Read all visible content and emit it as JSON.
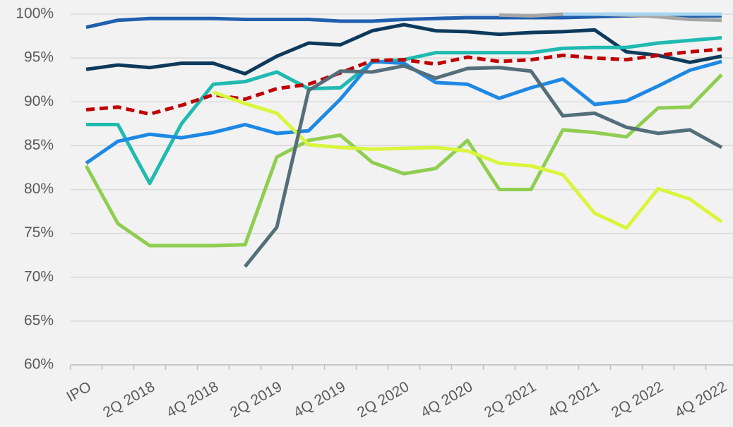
{
  "chart_data": {
    "type": "line",
    "categories": [
      "IPO",
      null,
      "2Q 2018",
      null,
      "4Q 2018",
      null,
      "2Q 2019",
      null,
      "4Q 2019",
      null,
      "2Q 2020",
      null,
      "4Q 2020",
      null,
      "2Q 2021",
      null,
      "4Q 2021",
      null,
      "2Q 2022",
      null,
      "4Q 2022"
    ],
    "ylim": [
      60,
      100
    ],
    "yticks": [
      {
        "value": 60,
        "label": "60%"
      },
      {
        "value": 65,
        "label": "65%"
      },
      {
        "value": 70,
        "label": "70%"
      },
      {
        "value": 75,
        "label": "75%"
      },
      {
        "value": 80,
        "label": "80%"
      },
      {
        "value": 85,
        "label": "85%"
      },
      {
        "value": 90,
        "label": "90%"
      },
      {
        "value": 95,
        "label": "95%"
      },
      {
        "value": 100,
        "label": "100%"
      }
    ],
    "grid": true,
    "series": [
      {
        "color": "#1f5fae",
        "dash": false,
        "values": [
          98.5,
          99.3,
          99.5,
          99.5,
          99.5,
          99.4,
          99.4,
          99.4,
          99.2,
          99.2,
          99.4,
          99.5,
          99.6,
          99.6,
          99.6,
          99.6,
          99.7,
          99.8,
          99.8,
          99.8,
          99.8
        ]
      },
      {
        "color": "#a6a6a6",
        "dash": false,
        "values": [
          null,
          null,
          null,
          null,
          null,
          null,
          null,
          null,
          null,
          null,
          null,
          null,
          null,
          99.9,
          99.8,
          100,
          100,
          99.9,
          99.7,
          99.4,
          99.3
        ]
      },
      {
        "color": "#a9d5f0",
        "dash": false,
        "values": [
          null,
          null,
          null,
          null,
          null,
          null,
          null,
          null,
          null,
          null,
          null,
          null,
          null,
          null,
          null,
          100,
          100,
          100,
          100,
          100,
          100
        ]
      },
      {
        "color": "#0d3a5c",
        "dash": false,
        "values": [
          93.7,
          94.2,
          93.9,
          94.4,
          94.4,
          93.2,
          95.2,
          96.7,
          96.5,
          98.1,
          98.8,
          98.1,
          98.0,
          97.7,
          97.9,
          98.0,
          98.2,
          95.7,
          95.3,
          94.5,
          95.2
        ]
      },
      {
        "color": "#1fbab0",
        "dash": false,
        "values": [
          87.4,
          87.4,
          80.7,
          87.5,
          92.0,
          92.3,
          93.4,
          91.5,
          91.6,
          94.5,
          94.8,
          95.6,
          95.6,
          95.6,
          95.6,
          96.1,
          96.2,
          96.2,
          96.7,
          97.0,
          97.3
        ]
      },
      {
        "color": "#1e88e5",
        "dash": false,
        "values": [
          83.0,
          85.5,
          86.3,
          85.9,
          86.5,
          87.4,
          86.4,
          86.7,
          90.3,
          94.6,
          94.4,
          92.2,
          92.0,
          90.4,
          91.6,
          92.6,
          89.7,
          90.1,
          91.8,
          93.6,
          94.6
        ]
      },
      {
        "color": "#c00000",
        "dash": true,
        "values": [
          89.1,
          89.4,
          88.6,
          89.6,
          90.8,
          90.3,
          91.5,
          92.0,
          93.3,
          94.7,
          94.8,
          94.3,
          95.1,
          94.6,
          94.8,
          95.3,
          95.0,
          94.8,
          95.3,
          95.7,
          96.0
        ]
      },
      {
        "color": "#8fce50",
        "dash": false,
        "values": [
          82.7,
          76.1,
          73.6,
          73.6,
          73.6,
          73.7,
          83.7,
          85.6,
          86.2,
          83.1,
          81.8,
          82.4,
          85.6,
          80.0,
          80.0,
          86.8,
          86.5,
          86.0,
          89.3,
          89.4,
          93.1
        ]
      },
      {
        "color": "#d9f53c",
        "dash": false,
        "values": [
          null,
          null,
          null,
          null,
          91.1,
          89.8,
          88.7,
          85.1,
          84.8,
          84.6,
          84.7,
          84.8,
          84.4,
          83.0,
          82.7,
          81.7,
          77.3,
          75.6,
          80.1,
          78.9,
          76.3
        ]
      },
      {
        "color": "#546e7a",
        "dash": false,
        "values": [
          null,
          null,
          null,
          null,
          null,
          71.2,
          75.7,
          91.3,
          93.5,
          93.4,
          94.1,
          92.7,
          93.8,
          93.9,
          93.5,
          88.4,
          88.7,
          87.1,
          86.4,
          86.8,
          84.8
        ]
      }
    ]
  }
}
